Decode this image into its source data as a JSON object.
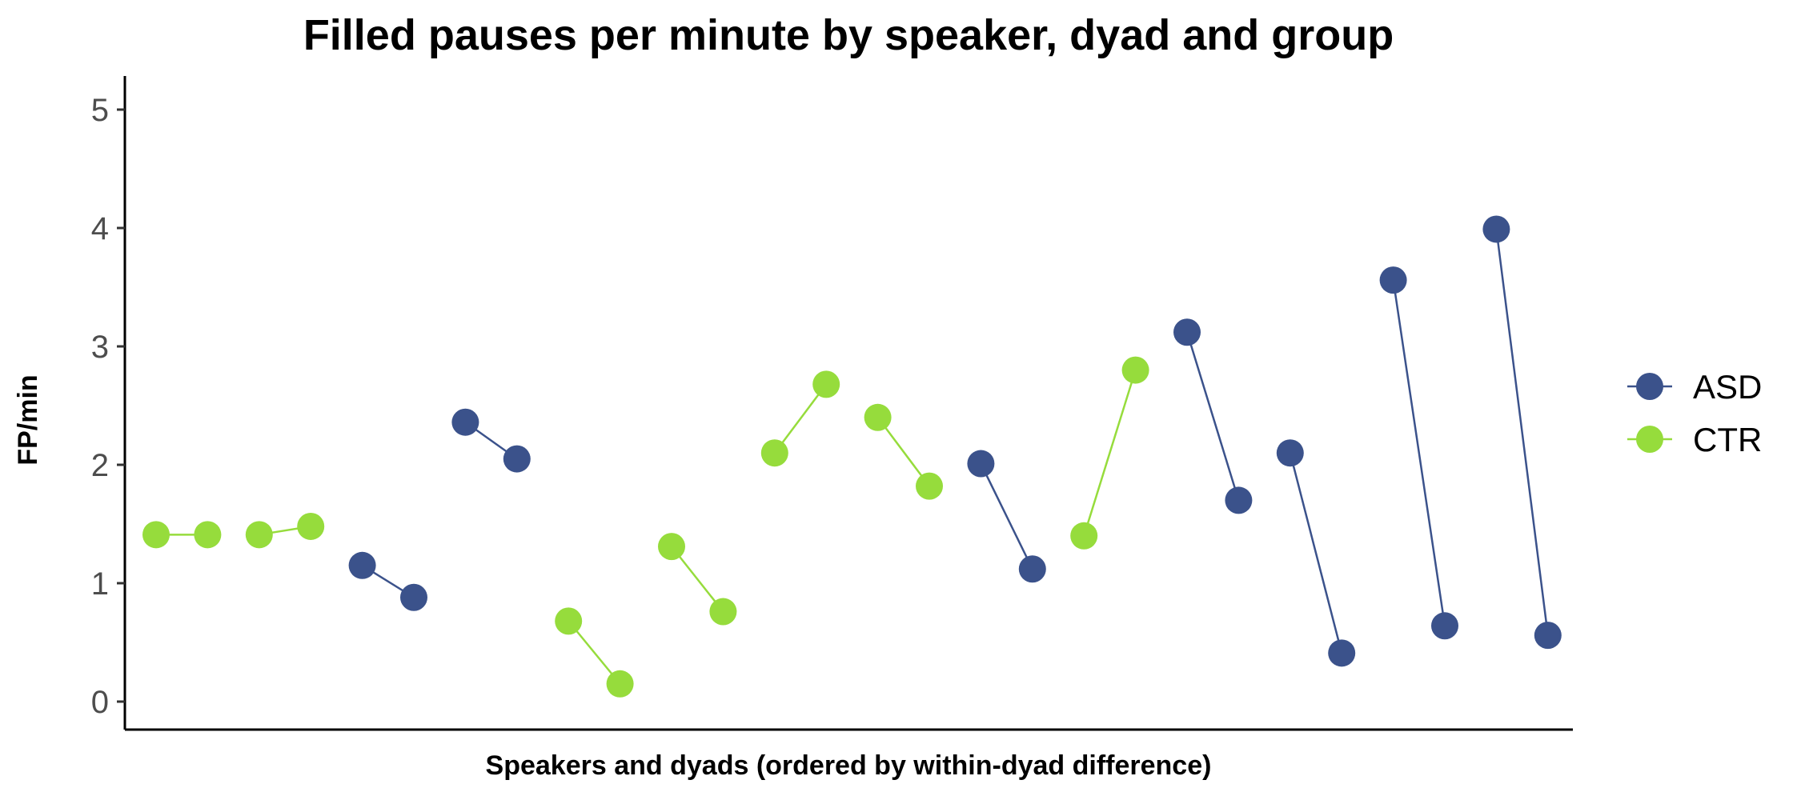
{
  "chart_data": {
    "type": "scatter",
    "title": "Filled pauses per minute by speaker, dyad and group",
    "xlabel": "Speakers and dyads (ordered by within-dyad difference)",
    "ylabel": "FP/min",
    "ylim": [
      -0.2,
      5.15
    ],
    "yticks": [
      "0",
      "1",
      "2",
      "3",
      "4",
      "5"
    ],
    "grid": false,
    "legend_position": "right",
    "groups": [
      {
        "name": "ASD",
        "color": "#3b528b"
      },
      {
        "name": "CTR",
        "color": "#96dc3c"
      }
    ],
    "dyads": [
      {
        "group": "CTR",
        "values": [
          1.41,
          1.41
        ]
      },
      {
        "group": "CTR",
        "values": [
          1.41,
          1.48
        ]
      },
      {
        "group": "ASD",
        "values": [
          1.15,
          0.88
        ]
      },
      {
        "group": "ASD",
        "values": [
          2.36,
          2.05
        ]
      },
      {
        "group": "CTR",
        "values": [
          0.68,
          0.15
        ]
      },
      {
        "group": "CTR",
        "values": [
          1.31,
          0.76
        ]
      },
      {
        "group": "CTR",
        "values": [
          2.1,
          2.68
        ]
      },
      {
        "group": "CTR",
        "values": [
          2.4,
          1.82
        ]
      },
      {
        "group": "ASD",
        "values": [
          2.01,
          1.12
        ]
      },
      {
        "group": "CTR",
        "values": [
          1.4,
          2.8
        ]
      },
      {
        "group": "ASD",
        "values": [
          3.12,
          1.7
        ]
      },
      {
        "group": "ASD",
        "values": [
          2.1,
          0.41
        ]
      },
      {
        "group": "ASD",
        "values": [
          3.56,
          0.64
        ]
      },
      {
        "group": "ASD",
        "values": [
          3.99,
          0.56
        ]
      }
    ]
  }
}
